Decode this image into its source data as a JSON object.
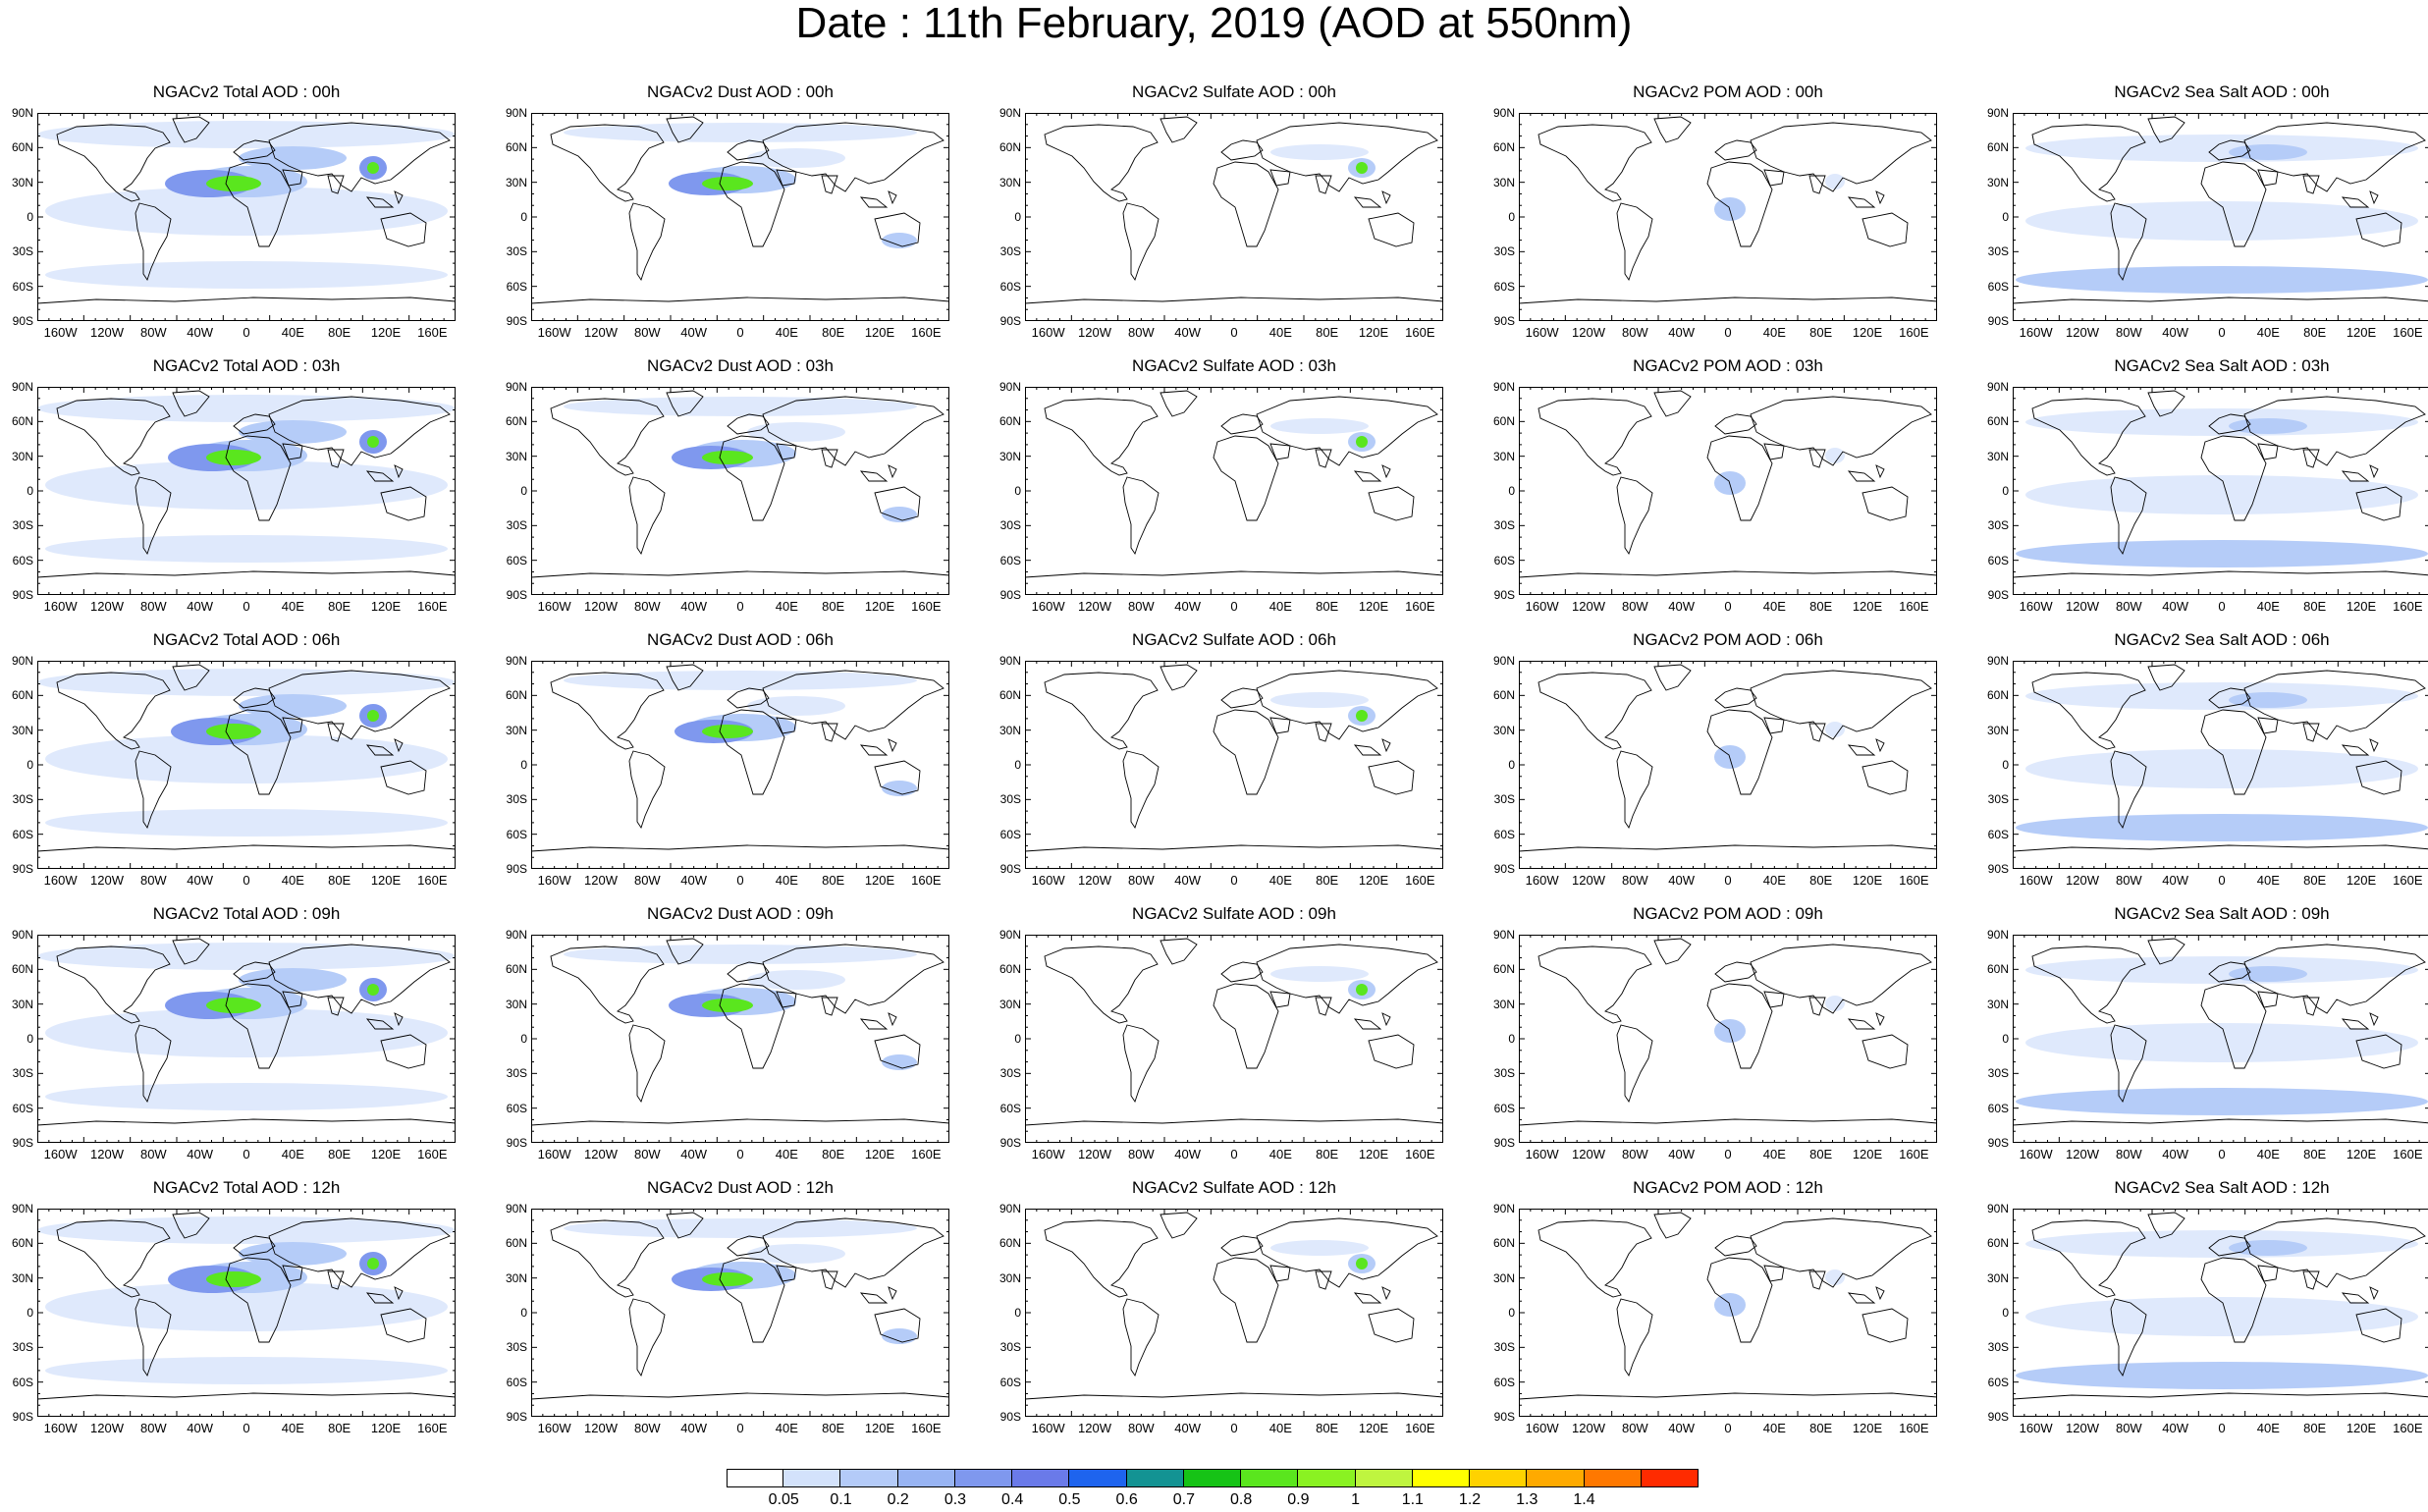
{
  "title": "Date : 11th February, 2019 (AOD at 550nm)",
  "row_hours": [
    "00h",
    "03h",
    "06h",
    "09h",
    "12h"
  ],
  "columns": [
    {
      "key": "total",
      "name": "Total AOD"
    },
    {
      "key": "dust",
      "name": "Dust AOD"
    },
    {
      "key": "sulfate",
      "name": "Sulfate AOD"
    },
    {
      "key": "pom",
      "name": "POM AOD"
    },
    {
      "key": "seasalt",
      "name": "Sea Salt AOD"
    }
  ],
  "panel_titles": [
    [
      "NGACv2 Total AOD : 00h",
      "NGACv2 Dust AOD : 00h",
      "NGACv2 Sulfate AOD : 00h",
      "NGACv2 POM AOD : 00h",
      "NGACv2 Sea Salt AOD : 00h"
    ],
    [
      "NGACv2 Total AOD : 03h",
      "NGACv2 Dust AOD : 03h",
      "NGACv2 Sulfate AOD : 03h",
      "NGACv2 POM AOD : 03h",
      "NGACv2 Sea Salt AOD : 03h"
    ],
    [
      "NGACv2 Total AOD : 06h",
      "NGACv2 Dust AOD : 06h",
      "NGACv2 Sulfate AOD : 06h",
      "NGACv2 POM AOD : 06h",
      "NGACv2 Sea Salt AOD : 06h"
    ],
    [
      "NGACv2 Total AOD : 09h",
      "NGACv2 Dust AOD : 09h",
      "NGACv2 Sulfate AOD : 09h",
      "NGACv2 POM AOD : 09h",
      "NGACv2 Sea Salt  AOD : 09h"
    ],
    [
      "NGACv2 Total AOD : 12h",
      "NGACv2 Dust AOD : 12h",
      "NGACv2 Sulfate AOD : 12h",
      "NGACv2 POM  AOD : 12h",
      "NGACv2 Sea Salt  AOD : 12h"
    ]
  ],
  "lat_labels": [
    "90N",
    "60N",
    "30N",
    "0",
    "30S",
    "60S",
    "90S"
  ],
  "lon_labels": [
    "160W",
    "120W",
    "80W",
    "40W",
    "0",
    "40E",
    "80E",
    "120E",
    "160E"
  ],
  "lon_values": [
    -160,
    -120,
    -80,
    -40,
    0,
    40,
    80,
    120,
    160
  ],
  "colorbar": {
    "labels": [
      "0.05",
      "0.1",
      "0.2",
      "0.3",
      "0.4",
      "0.5",
      "0.6",
      "0.7",
      "0.8",
      "0.9",
      "1",
      "1.1",
      "1.2",
      "1.3",
      "1.4"
    ],
    "colors": [
      "#ffffff",
      "#d3e2fb",
      "#b4cbf8",
      "#98b4f3",
      "#7f98ee",
      "#6a7ae9",
      "#1e64ee",
      "#139393",
      "#16c316",
      "#5ae61e",
      "#8af222",
      "#bff53f",
      "#ffff00",
      "#ffd200",
      "#ffaa00",
      "#ff7800",
      "#ff2b00"
    ]
  },
  "colors": {
    "ocean_light": "#dfe9fc",
    "ocean_mid": "#b5ccf8",
    "plume_strong": "#7f98ee",
    "hotspot_green": "#5ae61e",
    "coast": "#000000"
  }
}
